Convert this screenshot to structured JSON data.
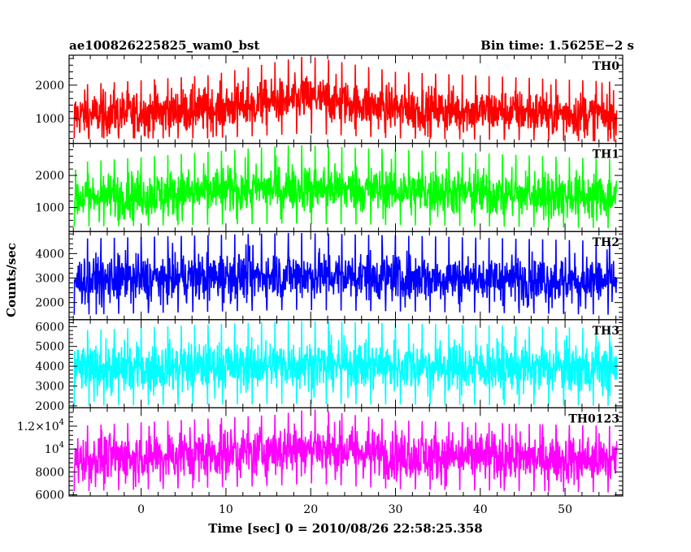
{
  "header": {
    "left_title": "ae100826225825_wam0_bst",
    "right_title": "Bin time: 1.5625E−2 s"
  },
  "axes": {
    "ylabel": "Counts/sec",
    "xlabel": "Time [sec] 0 = 2010/08/26 22:58:25.358"
  },
  "chart_data": {
    "type": "line",
    "xlim": [
      -8.5,
      56.8
    ],
    "x_data_range": [
      -7.9,
      56.1
    ],
    "x_ticks": [
      0,
      10,
      20,
      30,
      40,
      50
    ],
    "x_tick_labels": [
      "0",
      "10",
      "20",
      "30",
      "40",
      "50"
    ],
    "grid": false,
    "bin_time_s": 0.015625,
    "panels": [
      {
        "name": "TH0",
        "color": "#ff0000",
        "ylim": [
          250,
          2900
        ],
        "yticks": [
          1000,
          2000
        ],
        "ytick_labels": [
          {
            "m": "1000"
          },
          {
            "m": "2000"
          }
        ],
        "mean": 1100,
        "spread": 330,
        "envelope": [
          {
            "x": -7.9,
            "lo": 400,
            "hi": 2000
          },
          {
            "x": 8.0,
            "lo": 400,
            "hi": 2300
          },
          {
            "x": 16.0,
            "lo": 500,
            "hi": 2700
          },
          {
            "x": 19.5,
            "lo": 550,
            "hi": 2880
          },
          {
            "x": 30.0,
            "lo": 400,
            "hi": 2400
          },
          {
            "x": 56.1,
            "lo": 300,
            "hi": 2100
          }
        ]
      },
      {
        "name": "TH1",
        "color": "#00ff00",
        "ylim": [
          250,
          3000
        ],
        "yticks": [
          1000,
          2000
        ],
        "ytick_labels": [
          {
            "m": "1000"
          },
          {
            "m": "2000"
          }
        ],
        "mean": 1300,
        "spread": 360,
        "envelope": [
          {
            "x": -7.9,
            "lo": 400,
            "hi": 2400
          },
          {
            "x": 18.0,
            "lo": 500,
            "hi": 2950
          },
          {
            "x": 56.1,
            "lo": 350,
            "hi": 2500
          }
        ]
      },
      {
        "name": "TH2",
        "color": "#0000ff",
        "ylim": [
          1300,
          4900
        ],
        "yticks": [
          2000,
          3000,
          4000
        ],
        "ytick_labels": [
          {
            "m": "2000"
          },
          {
            "m": "3000"
          },
          {
            "m": "4000"
          }
        ],
        "mean": 2900,
        "spread": 480,
        "envelope": [
          {
            "x": -7.9,
            "lo": 1500,
            "hi": 4600
          },
          {
            "x": 18.0,
            "lo": 1700,
            "hi": 4850
          },
          {
            "x": 56.1,
            "lo": 1500,
            "hi": 4500
          }
        ]
      },
      {
        "name": "TH3",
        "color": "#00ffff",
        "ylim": [
          1900,
          6350
        ],
        "yticks": [
          2000,
          3000,
          4000,
          5000,
          6000
        ],
        "ytick_labels": [
          {
            "m": "2000"
          },
          {
            "m": "3000"
          },
          {
            "m": "4000"
          },
          {
            "m": "5000"
          },
          {
            "m": "6000"
          }
        ],
        "mean": 3800,
        "spread": 620,
        "envelope": [
          {
            "x": -7.9,
            "lo": 2000,
            "hi": 5800
          },
          {
            "x": 18.0,
            "lo": 2100,
            "hi": 6300
          },
          {
            "x": 56.1,
            "lo": 2000,
            "hi": 5900
          }
        ]
      },
      {
        "name": "TH0123",
        "color": "#ff00ff",
        "ylim": [
          5900,
          13600
        ],
        "yticks": [
          6000,
          8000,
          10000,
          12000
        ],
        "ytick_labels": [
          {
            "m": "6000"
          },
          {
            "m": "8000"
          },
          {
            "m": "10",
            "e": "4"
          },
          {
            "m": "1.2×10",
            "e": "4"
          }
        ],
        "mean": 9100,
        "spread": 1050,
        "envelope": [
          {
            "x": -7.9,
            "lo": 6300,
            "hi": 12000
          },
          {
            "x": 16.0,
            "lo": 6800,
            "hi": 13000
          },
          {
            "x": 20.0,
            "lo": 7000,
            "hi": 13500
          },
          {
            "x": 30.0,
            "lo": 6500,
            "hi": 12500
          },
          {
            "x": 56.1,
            "lo": 6200,
            "hi": 12000
          }
        ]
      }
    ]
  }
}
